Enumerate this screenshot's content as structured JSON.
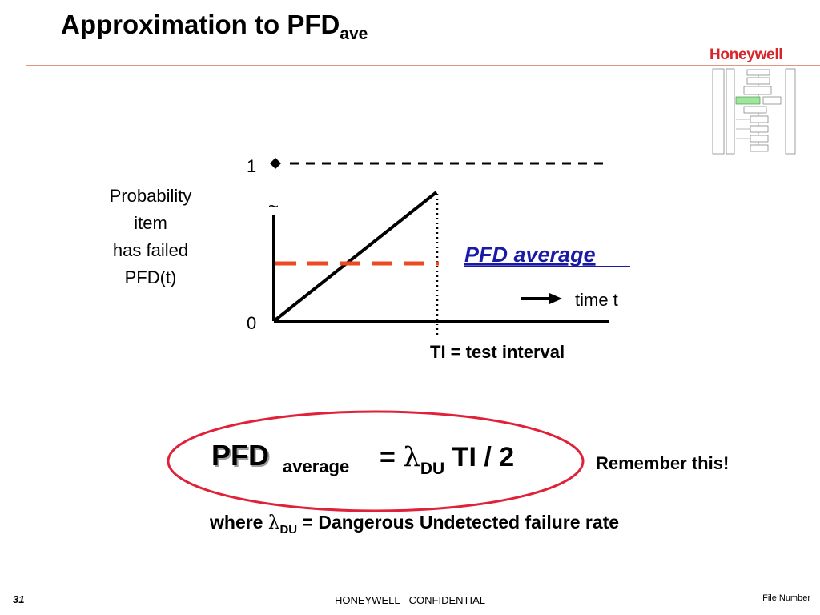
{
  "slide": {
    "title_main": "Approximation to PFD",
    "title_sub": "ave",
    "logo": "Honeywell",
    "brand_color": "#d7262b",
    "accent_rule_color": "#e8927f"
  },
  "graph": {
    "y_label_lines": [
      "Probability",
      "item",
      "has failed",
      "PFD(t)"
    ],
    "tick_one": "1",
    "tick_zero": "0",
    "break_mark": "~",
    "pfd_average_label": "PFD average",
    "time_label": "time t",
    "ti_label": "TI = test interval",
    "pfd_average_color": "#1a1aa8",
    "average_line_color": "#ee4a22"
  },
  "formula": {
    "pfd": "PFD",
    "average": "average",
    "equals": "=",
    "lambda": "λ",
    "du": "DU",
    "rhs": "TI / 2",
    "remember": "Remember this!",
    "ellipse_color": "#e0213a"
  },
  "where": {
    "prefix": "where",
    "lambda": "λ",
    "du": "DU",
    "text": "= Dangerous Undetected failure rate"
  },
  "footer": {
    "page_number": "31",
    "confidential": "HONEYWELL - CONFIDENTIAL",
    "file_number": "File Number"
  }
}
